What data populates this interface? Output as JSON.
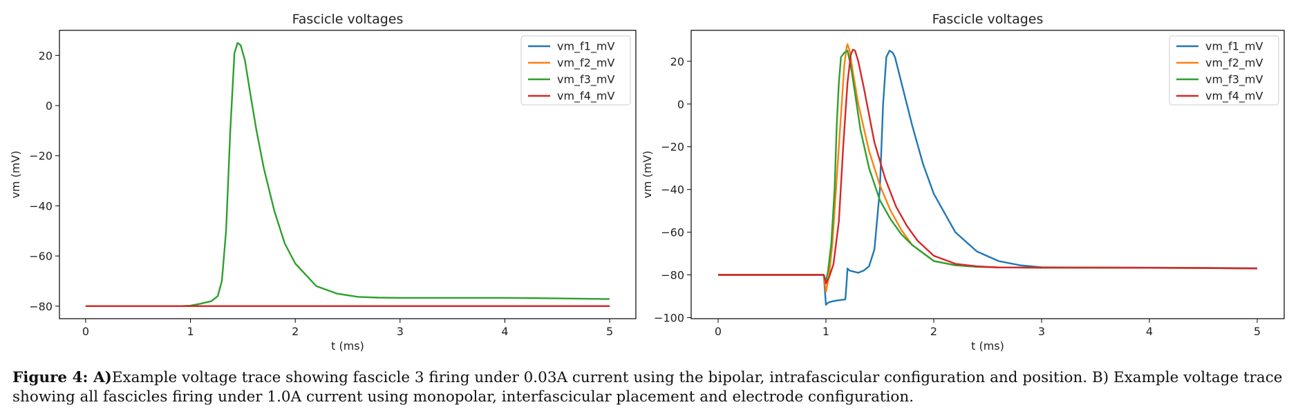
{
  "chart_data": [
    {
      "type": "line",
      "title": "Fascicle voltages",
      "xlabel": "t (ms)",
      "ylabel": "vm (mV)",
      "xlim": [
        -0.25,
        5.25
      ],
      "ylim": [
        -85,
        30
      ],
      "xticks": [
        0,
        1,
        2,
        3,
        4,
        5
      ],
      "xtick_labels": [
        "0",
        "1",
        "2",
        "3",
        "4",
        "5"
      ],
      "yticks": [
        -80,
        -60,
        -40,
        -20,
        0,
        20
      ],
      "ytick_labels": [
        "−80",
        "−60",
        "−40",
        "−20",
        "0",
        "20"
      ],
      "grid": false,
      "legend": "top-right",
      "series": [
        {
          "name": "vm_f1_mV",
          "color": "#1f77b4",
          "x": [
            0,
            1,
            2,
            3,
            4,
            5
          ],
          "y": [
            -80,
            -80,
            -80,
            -80,
            -80,
            -80
          ]
        },
        {
          "name": "vm_f2_mV",
          "color": "#ff7f0e",
          "x": [
            0,
            1,
            2,
            3,
            4,
            5
          ],
          "y": [
            -80,
            -80,
            -80,
            -80,
            -80,
            -80
          ]
        },
        {
          "name": "vm_f3_mV",
          "color": "#2ca02c",
          "x": [
            0,
            0.9,
            1.0,
            1.1,
            1.2,
            1.26,
            1.3,
            1.34,
            1.38,
            1.42,
            1.45,
            1.48,
            1.52,
            1.57,
            1.63,
            1.7,
            1.8,
            1.9,
            2.0,
            2.2,
            2.4,
            2.6,
            2.8,
            3.0,
            3.5,
            4.0,
            4.5,
            5.0
          ],
          "y": [
            -80,
            -80,
            -79.8,
            -79,
            -78,
            -76,
            -70,
            -50,
            -10,
            21,
            25,
            24,
            18,
            5,
            -10,
            -25,
            -42,
            -55,
            -63,
            -72,
            -75,
            -76.3,
            -76.6,
            -76.7,
            -76.7,
            -76.7,
            -76.9,
            -77.2
          ]
        },
        {
          "name": "vm_f4_mV",
          "color": "#d62728",
          "x": [
            0,
            1,
            2,
            3,
            4,
            5
          ],
          "y": [
            -80,
            -80,
            -80,
            -80,
            -80,
            -80
          ]
        }
      ]
    },
    {
      "type": "line",
      "title": "Fascicle voltages",
      "xlabel": "t (ms)",
      "ylabel": "vm (mV)",
      "xlim": [
        -0.25,
        5.25
      ],
      "ylim": [
        -100.5,
        34.5
      ],
      "xticks": [
        0,
        1,
        2,
        3,
        4,
        5
      ],
      "xtick_labels": [
        "0",
        "1",
        "2",
        "3",
        "4",
        "5"
      ],
      "yticks": [
        -100,
        -80,
        -60,
        -40,
        -20,
        0,
        20
      ],
      "ytick_labels": [
        "−100",
        "−80",
        "−60",
        "−40",
        "−20",
        "0",
        "20"
      ],
      "grid": false,
      "legend": "top-right",
      "series": [
        {
          "name": "vm_f1_mV",
          "color": "#1f77b4",
          "x": [
            0,
            0.98,
            1.0,
            1.02,
            1.05,
            1.1,
            1.18,
            1.19,
            1.2,
            1.22,
            1.3,
            1.35,
            1.4,
            1.45,
            1.5,
            1.53,
            1.56,
            1.59,
            1.62,
            1.64,
            1.66,
            1.7,
            1.75,
            1.8,
            1.9,
            2.0,
            2.2,
            2.4,
            2.6,
            2.8,
            3.0,
            3.5,
            4.0,
            4.5,
            5.0
          ],
          "y": [
            -80,
            -80,
            -94,
            -93,
            -92.5,
            -92,
            -91.5,
            -85,
            -77,
            -78,
            -79,
            -78,
            -76,
            -68,
            -40,
            0,
            22,
            25,
            24,
            22,
            18,
            10,
            0,
            -10,
            -28,
            -42,
            -60,
            -69,
            -73.5,
            -75.5,
            -76.4,
            -76.6,
            -76.6,
            -76.7,
            -76.9
          ]
        },
        {
          "name": "vm_f2_mV",
          "color": "#ff7f0e",
          "x": [
            0,
            0.98,
            1.0,
            1.03,
            1.06,
            1.1,
            1.14,
            1.17,
            1.19,
            1.2,
            1.22,
            1.25,
            1.3,
            1.4,
            1.5,
            1.6,
            1.7,
            1.8,
            2.0,
            2.2,
            2.4,
            2.6,
            3.0,
            3.5,
            4.0,
            4.5,
            5.0
          ],
          "y": [
            -80,
            -80,
            -88,
            -80,
            -65,
            -35,
            -5,
            18,
            26,
            28,
            25,
            15,
            0,
            -22,
            -38,
            -50,
            -59,
            -66,
            -73.5,
            -75.5,
            -76.2,
            -76.5,
            -76.6,
            -76.6,
            -76.7,
            -76.8,
            -77
          ]
        },
        {
          "name": "vm_f3_mV",
          "color": "#2ca02c",
          "x": [
            0,
            0.98,
            1.0,
            1.02,
            1.05,
            1.08,
            1.1,
            1.12,
            1.14,
            1.17,
            1.2,
            1.23,
            1.27,
            1.32,
            1.4,
            1.5,
            1.6,
            1.7,
            1.8,
            2.0,
            2.2,
            2.4,
            2.6,
            3.0,
            3.5,
            4.0,
            4.5,
            5.0
          ],
          "y": [
            -80,
            -80,
            -83,
            -78,
            -65,
            -40,
            -10,
            10,
            22,
            24,
            25,
            18,
            5,
            -12,
            -30,
            -45,
            -54,
            -61,
            -66,
            -73.5,
            -75.5,
            -76.2,
            -76.5,
            -76.6,
            -76.6,
            -76.7,
            -76.8,
            -77
          ]
        },
        {
          "name": "vm_f4_mV",
          "color": "#d62728",
          "x": [
            0,
            0.98,
            1.0,
            1.03,
            1.07,
            1.12,
            1.16,
            1.2,
            1.23,
            1.25,
            1.27,
            1.3,
            1.35,
            1.45,
            1.55,
            1.65,
            1.75,
            1.85,
            2.0,
            2.2,
            2.4,
            2.6,
            3.0,
            3.5,
            4.0,
            4.5,
            5.0
          ],
          "y": [
            -80,
            -80,
            -84,
            -81,
            -75,
            -55,
            -20,
            10,
            23,
            25.5,
            25,
            20,
            8,
            -18,
            -35,
            -48,
            -57,
            -64,
            -71,
            -74.8,
            -76,
            -76.5,
            -76.6,
            -76.6,
            -76.7,
            -76.8,
            -77
          ]
        }
      ]
    }
  ],
  "caption": {
    "label": "Figure 4: A)",
    "text": "Example voltage trace showing fascicle 3 firing under 0.03A  current using the bipolar, intrafascicular configuration and position. B)  Example voltage trace showing all fascicles firing under 1.0A current using monopolar, interfascicular placement and electrode configuration."
  }
}
